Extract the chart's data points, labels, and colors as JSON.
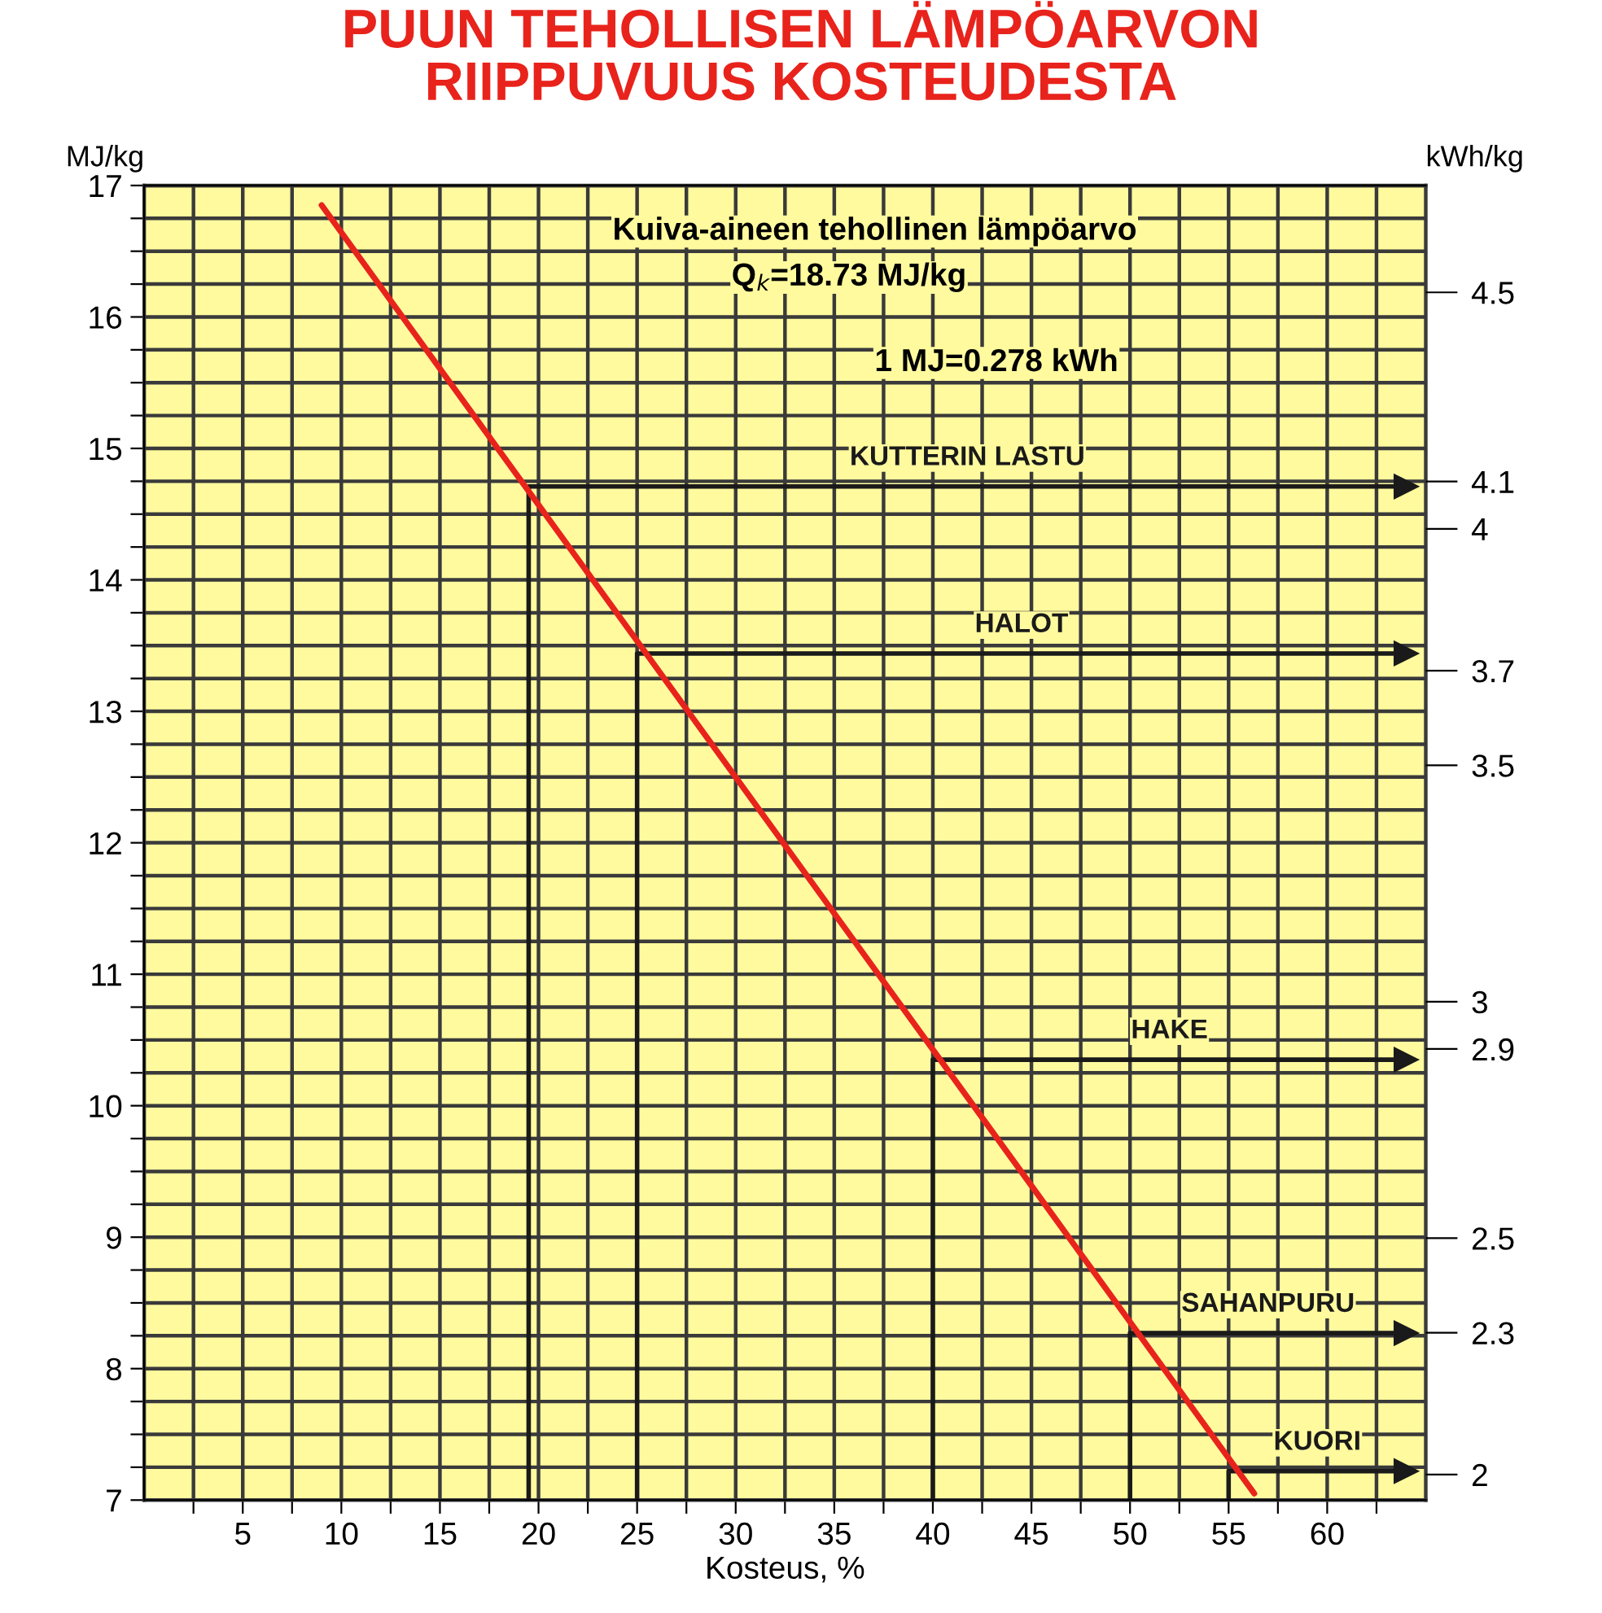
{
  "chart_data": {
    "type": "line",
    "title": "PUUN TEHOLLISEN LÄMPÖARVON\nRIIPPUVUUS KOSTEUDESTA",
    "xlabel": "Kosteus, %",
    "ylabel": "MJ/kg",
    "y2label": "kWh/kg",
    "annotations": [
      "Kuiva-aineen tehollinen lämpöarvo",
      "Q$_{k}$=18.73 MJ/kg",
      "1 MJ=0.278 kWh"
    ],
    "series": [
      {
        "color": "#e8231c",
        "x": [
          9,
          56.3
        ],
        "values": [
          16.85,
          7.05
        ]
      },
      {
        "name": "KUTTERIN LASTU",
        "color": "#1a1a1a",
        "x": [
          19.5,
          19.5,
          64
        ],
        "values": [
          7,
          14.71,
          14.71
        ]
      },
      {
        "name": "HALOT",
        "color": "#1a1a1a",
        "x": [
          25,
          25,
          64
        ],
        "values": [
          7,
          13.44,
          13.44
        ]
      },
      {
        "name": "HAKE",
        "color": "#1a1a1a",
        "x": [
          40,
          40,
          64
        ],
        "values": [
          7,
          10.35,
          10.35
        ]
      },
      {
        "name": "SAHANPURU",
        "color": "#1a1a1a",
        "x": [
          50,
          50,
          64
        ],
        "values": [
          7,
          8.27,
          8.27
        ]
      },
      {
        "name": "KUORI",
        "color": "#1a1a1a",
        "x": [
          55,
          55,
          64
        ],
        "values": [
          7,
          7.22,
          7.22
        ]
      }
    ],
    "xlim": [
      0,
      65
    ],
    "xticks": [
      {
        "value": 2.5,
        "label": null
      },
      5,
      {
        "value": 7.5,
        "label": null
      },
      10,
      {
        "value": 12.5,
        "label": null
      },
      15,
      {
        "value": 17.5,
        "label": null
      },
      20,
      {
        "value": 22.5,
        "label": null
      },
      25,
      {
        "value": 27.5,
        "label": null
      },
      30,
      {
        "value": 32.5,
        "label": null
      },
      35,
      {
        "value": 37.5,
        "label": null
      },
      40,
      {
        "value": 42.5,
        "label": null
      },
      45,
      {
        "value": 47.5,
        "label": null
      },
      50,
      {
        "value": 52.5,
        "label": null
      },
      55,
      {
        "value": 57.5,
        "label": null
      },
      60,
      {
        "value": 62.5,
        "label": null
      }
    ],
    "ylim": [
      7,
      17
    ],
    "yticks": [
      7,
      {
        "value": 7.25,
        "label": null
      },
      {
        "value": 7.5,
        "label": null
      },
      {
        "value": 7.75,
        "label": null
      },
      8,
      {
        "value": 8.25,
        "label": null
      },
      {
        "value": 8.5,
        "label": null
      },
      {
        "value": 8.75,
        "label": null
      },
      9,
      {
        "value": 9.25,
        "label": null
      },
      {
        "value": 9.5,
        "label": null
      },
      {
        "value": 9.75,
        "label": null
      },
      10,
      {
        "value": 10.25,
        "label": null
      },
      {
        "value": 10.5,
        "label": null
      },
      {
        "value": 10.75,
        "label": null
      },
      11,
      {
        "value": 11.25,
        "label": null
      },
      {
        "value": 11.5,
        "label": null
      },
      {
        "value": 11.75,
        "label": null
      },
      12,
      {
        "value": 12.25,
        "label": null
      },
      {
        "value": 12.5,
        "label": null
      },
      {
        "value": 12.75,
        "label": null
      },
      13,
      {
        "value": 13.25,
        "label": null
      },
      {
        "value": 13.5,
        "label": null
      },
      {
        "value": 13.75,
        "label": null
      },
      14,
      {
        "value": 14.25,
        "label": null
      },
      {
        "value": 14.5,
        "label": null
      },
      {
        "value": 14.75,
        "label": null
      },
      15,
      {
        "value": 15.25,
        "label": null
      },
      {
        "value": 15.5,
        "label": null
      },
      {
        "value": 15.75,
        "label": null
      },
      16,
      {
        "value": 16.25,
        "label": null
      },
      {
        "value": 16.5,
        "label": null
      },
      {
        "value": 16.75,
        "label": null
      },
      17
    ],
    "y2lim": [
      1.946,
      4.726
    ],
    "y2ticks": [
      2,
      2.3,
      2.5,
      2.9,
      3,
      3.5,
      3.7,
      4,
      4.1,
      4.5
    ],
    "grid": true
  }
}
